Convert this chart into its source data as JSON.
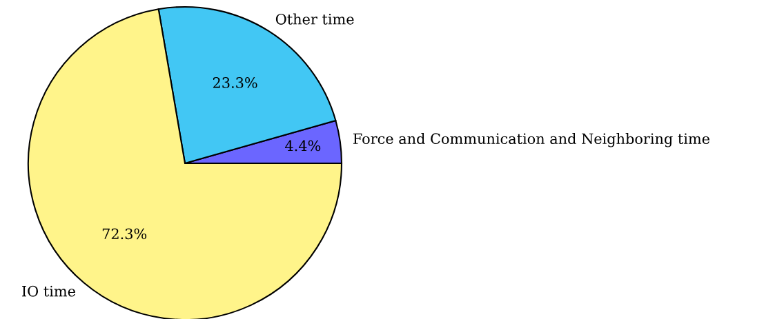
{
  "chart_data": {
    "type": "pie",
    "categories": [
      "Force and Communication and Neighboring time",
      "Other time",
      "IO time"
    ],
    "values": [
      4.4,
      23.3,
      72.3
    ],
    "colors": [
      "#6b66ff",
      "#42c7f4",
      "#fff48a"
    ],
    "value_labels": [
      "4.4%",
      "23.3%",
      "72.3%"
    ]
  }
}
